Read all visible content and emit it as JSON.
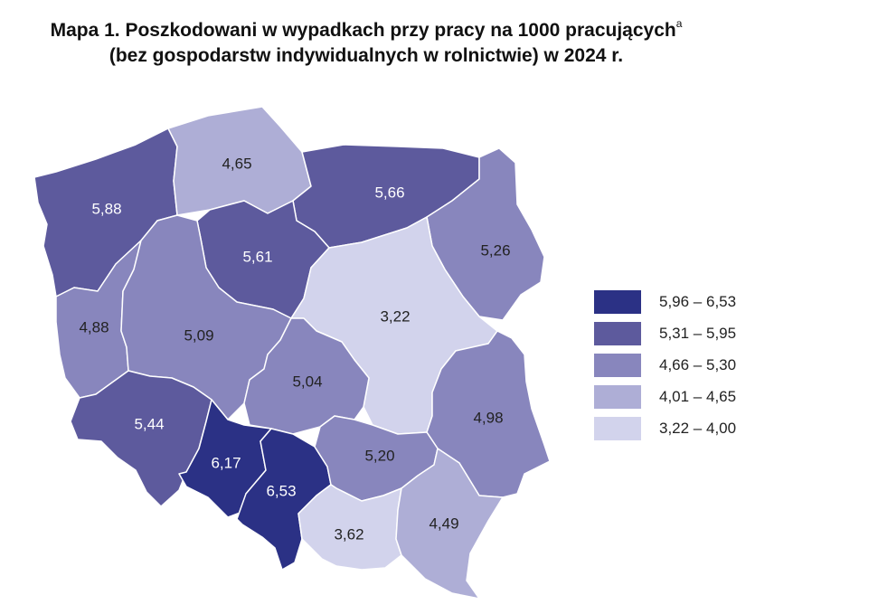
{
  "title": {
    "line1": "Mapa 1. Poszkodowani w wypadkach przy pracy na 1000 pracujących",
    "footnote_mark": "a",
    "line2": "(bez gospodarstw indywidualnych w rolnictwie) w 2024 r."
  },
  "legend": [
    {
      "label": "5,96 – 6,53",
      "color": "#2b3185"
    },
    {
      "label": "5,31 – 5,95",
      "color": "#5d5a9d"
    },
    {
      "label": "4,66 – 5,30",
      "color": "#8886bd"
    },
    {
      "label": "4,01 – 4,65",
      "color": "#aeaed6"
    },
    {
      "label": "3,22 – 4,00",
      "color": "#d2d3ec"
    }
  ],
  "regions": [
    {
      "id": "zachodniopomorskie",
      "value": "5,88",
      "class": 1
    },
    {
      "id": "pomorskie",
      "value": "4,65",
      "class": 3
    },
    {
      "id": "warminsko-mazurskie",
      "value": "5,66",
      "class": 1
    },
    {
      "id": "kujawsko-pomorskie",
      "value": "5,61",
      "class": 1
    },
    {
      "id": "podlaskie",
      "value": "5,26",
      "class": 2
    },
    {
      "id": "lubuskie",
      "value": "4,88",
      "class": 2
    },
    {
      "id": "wielkopolskie",
      "value": "5,09",
      "class": 2
    },
    {
      "id": "mazowieckie",
      "value": "3,22",
      "class": 4
    },
    {
      "id": "lodzkie",
      "value": "5,04",
      "class": 2
    },
    {
      "id": "dolnoslaskie",
      "value": "5,44",
      "class": 1
    },
    {
      "id": "lubelskie",
      "value": "4,98",
      "class": 2
    },
    {
      "id": "opolskie",
      "value": "6,17",
      "class": 0
    },
    {
      "id": "slaskie",
      "value": "6,53",
      "class": 0
    },
    {
      "id": "swietokrzyskie",
      "value": "5,20",
      "class": 2
    },
    {
      "id": "malopolskie",
      "value": "3,62",
      "class": 4
    },
    {
      "id": "podkarpackie",
      "value": "4,49",
      "class": 3
    }
  ]
}
